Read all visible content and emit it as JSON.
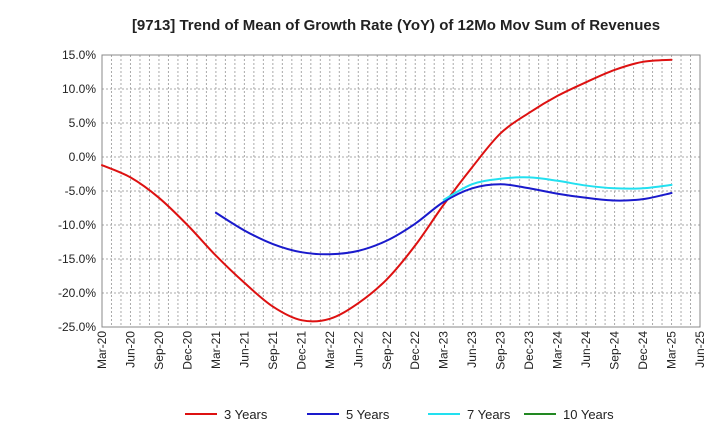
{
  "chart_data": {
    "type": "line",
    "title": "[9713]  Trend of Mean of Growth Rate (YoY) of 12Mo Mov Sum of Revenues",
    "xlabel": "",
    "ylabel": "",
    "ylim": [
      -25,
      15
    ],
    "y_ticks": [
      15,
      10,
      5,
      0,
      -5,
      -10,
      -15,
      -20,
      -25
    ],
    "y_tick_labels": [
      "15.0%",
      "10.0%",
      "5.0%",
      "0.0%",
      "-5.0%",
      "-10.0%",
      "-15.0%",
      "-20.0%",
      "-25.0%"
    ],
    "x_range": [
      0,
      21
    ],
    "x_tick_labels": [
      "Mar-20",
      "Jun-20",
      "Sep-20",
      "Dec-20",
      "Mar-21",
      "Jun-21",
      "Sep-21",
      "Dec-21",
      "Mar-22",
      "Jun-22",
      "Sep-22",
      "Dec-22",
      "Mar-23",
      "Jun-23",
      "Sep-23",
      "Dec-23",
      "Mar-24",
      "Jun-24",
      "Sep-24",
      "Dec-24",
      "Mar-25",
      "Jun-25"
    ],
    "grid": true,
    "legend_position": "bottom",
    "series": [
      {
        "name": "3 Years",
        "color": "#dd1111",
        "x": [
          0,
          1,
          2,
          3,
          4,
          5,
          6,
          7,
          8,
          9,
          10,
          11,
          12,
          13,
          14,
          15,
          16,
          17,
          18,
          19,
          20
        ],
        "values": [
          -1.2,
          -3.0,
          -6.0,
          -10.0,
          -14.5,
          -18.5,
          -22.0,
          -24.0,
          -23.8,
          -21.5,
          -18.0,
          -13.0,
          -7.0,
          -1.5,
          3.5,
          6.5,
          9.0,
          11.0,
          12.8,
          14.0,
          14.3
        ]
      },
      {
        "name": "5 Years",
        "color": "#1a1acc",
        "x": [
          4,
          5,
          6,
          7,
          8,
          9,
          10,
          11,
          12,
          13,
          14,
          15,
          16,
          17,
          18,
          19,
          20
        ],
        "values": [
          -8.2,
          -10.8,
          -12.8,
          -14.0,
          -14.3,
          -13.8,
          -12.3,
          -9.8,
          -6.6,
          -4.6,
          -4.0,
          -4.6,
          -5.4,
          -6.0,
          -6.4,
          -6.2,
          -5.3
        ]
      },
      {
        "name": "7 Years",
        "color": "#22e0f0",
        "x": [
          12,
          13,
          14,
          15,
          16,
          17,
          18,
          19,
          20
        ],
        "values": [
          -6.3,
          -4.0,
          -3.2,
          -3.0,
          -3.5,
          -4.2,
          -4.6,
          -4.6,
          -4.1
        ]
      },
      {
        "name": "10 Years",
        "color": "#228822",
        "x": [],
        "values": []
      }
    ]
  }
}
